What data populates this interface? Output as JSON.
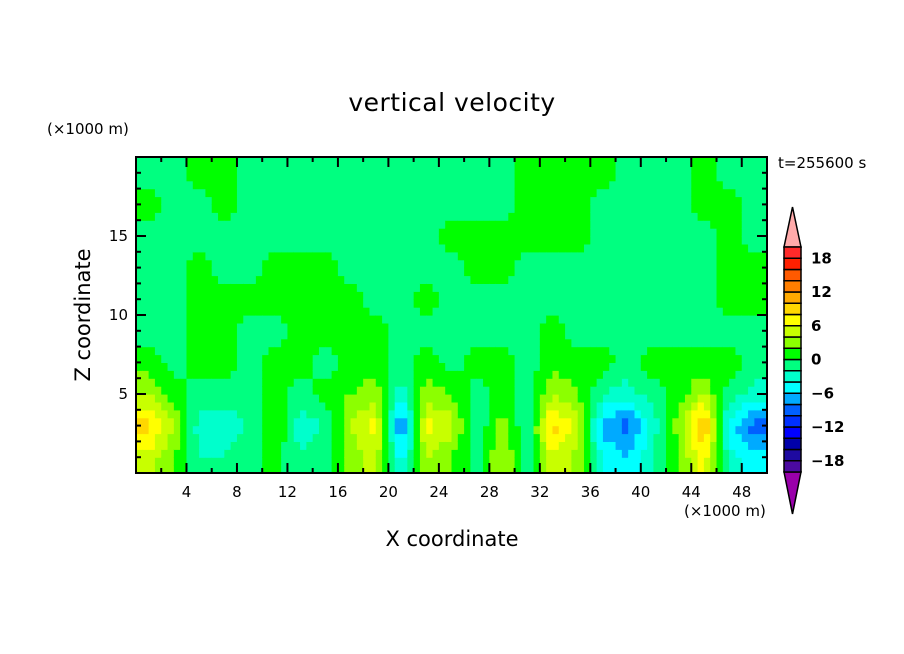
{
  "chart_data": {
    "type": "heatmap",
    "style": "filled-contour",
    "title": "vertical velocity",
    "xlabel": "X coordinate",
    "ylabel": "Z coordinate",
    "x_unit": "(×1000 m)",
    "y_unit": "(×1000 m)",
    "annotation": "t=255600 s",
    "xlim": [
      0,
      50
    ],
    "ylim": [
      0,
      20
    ],
    "x_ticks": [
      4,
      8,
      12,
      16,
      20,
      24,
      28,
      32,
      36,
      40,
      44,
      48
    ],
    "y_ticks": [
      5,
      10,
      15
    ],
    "grid": false,
    "grid_x_centers": [
      1,
      3,
      5,
      7,
      9,
      11,
      13,
      15,
      17,
      19,
      21,
      23,
      25,
      27,
      29,
      31,
      33,
      35,
      37,
      39,
      41,
      43,
      45,
      47,
      49
    ],
    "grid_z_centers_top_to_bottom": [
      19,
      17,
      15,
      13,
      11,
      9,
      7,
      5,
      3,
      1
    ],
    "values_top_to_bottom": [
      [
        -1,
        -1,
        1,
        1,
        -1,
        -1,
        -1,
        -1,
        -1,
        -1,
        -1,
        -1,
        -1,
        -1,
        -1,
        1,
        1,
        1,
        1,
        -1,
        -1,
        -1,
        1,
        -1,
        -1
      ],
      [
        1,
        -1,
        -1,
        1,
        -1,
        -1,
        -1,
        -1,
        -1,
        -1,
        -1,
        -1,
        -1,
        -1,
        -1,
        1,
        1,
        1,
        -1,
        -1,
        -1,
        -1,
        1,
        1,
        -1
      ],
      [
        -1,
        -1,
        -1,
        -1,
        -1,
        -1,
        -1,
        -1,
        -1,
        -1,
        -1,
        -1,
        1,
        1,
        1,
        1,
        1,
        1,
        -1,
        -1,
        -1,
        -1,
        -1,
        1,
        -1
      ],
      [
        -1,
        -1,
        1,
        -1,
        -1,
        1,
        1,
        1,
        -1,
        -1,
        -1,
        -1,
        -1,
        1,
        1,
        -1,
        -1,
        -1,
        -1,
        -1,
        -1,
        -1,
        -1,
        1,
        1
      ],
      [
        -1,
        -1,
        1,
        1,
        1,
        1,
        1,
        1,
        1,
        -1,
        -1,
        1,
        -1,
        -1,
        -1,
        -1,
        -1,
        -1,
        -1,
        -1,
        -1,
        -1,
        -1,
        1,
        1
      ],
      [
        -1,
        -1,
        1,
        1,
        -1,
        -1,
        1,
        1,
        1,
        1,
        -1,
        -1,
        -1,
        -1,
        -1,
        -1,
        1,
        -1,
        -1,
        -1,
        -1,
        -1,
        -1,
        -1,
        -1
      ],
      [
        1,
        -1,
        1,
        1,
        -1,
        1,
        1,
        -1,
        1,
        1,
        -1,
        1,
        -1,
        1,
        1,
        -1,
        1,
        1,
        1,
        -1,
        1,
        1,
        1,
        1,
        -1
      ],
      [
        4,
        1,
        -1,
        -1,
        -1,
        1,
        -1,
        1,
        2,
        3,
        -3,
        3,
        2,
        -1,
        1,
        -1,
        4,
        2,
        -2,
        -3,
        -1,
        1,
        4,
        -1,
        -3
      ],
      [
        9,
        4,
        -3,
        -3,
        -2,
        2,
        -3,
        -2,
        4,
        7,
        -9,
        7,
        5,
        -2,
        3,
        -2,
        9,
        5,
        -7,
        -9,
        -3,
        3,
        11,
        -5,
        -9
      ],
      [
        5,
        2,
        -2,
        -2,
        -1,
        1,
        -2,
        -1,
        3,
        5,
        -5,
        4,
        2,
        -1,
        4,
        -1,
        6,
        3,
        -4,
        -6,
        -2,
        2,
        7,
        -3,
        -5
      ]
    ],
    "colorbar": {
      "levels": [
        -20,
        -18,
        -16,
        -14,
        -12,
        -10,
        -8,
        -6,
        -4,
        -2,
        0,
        2,
        4,
        6,
        8,
        10,
        12,
        14,
        16,
        18,
        20
      ],
      "tick_labels": [
        "18",
        "12",
        "6",
        "0",
        "−6",
        "−12",
        "−18"
      ],
      "tick_values": [
        18,
        12,
        6,
        0,
        -6,
        -12,
        -18
      ],
      "colors_low_to_high": [
        "#4b0aa0",
        "#1e0aa0",
        "#0000aa",
        "#0000ff",
        "#0030ff",
        "#0060ff",
        "#00aaff",
        "#00ffff",
        "#00ffcc",
        "#00ff80",
        "#00ff00",
        "#8cff00",
        "#c8ff00",
        "#ffff00",
        "#ffd700",
        "#ffaa00",
        "#ff7f00",
        "#ff5a00",
        "#ff2000",
        "#ff2a2a"
      ],
      "under_color": "#9900aa",
      "over_color": "#ffaaaa",
      "extend": "both"
    }
  }
}
